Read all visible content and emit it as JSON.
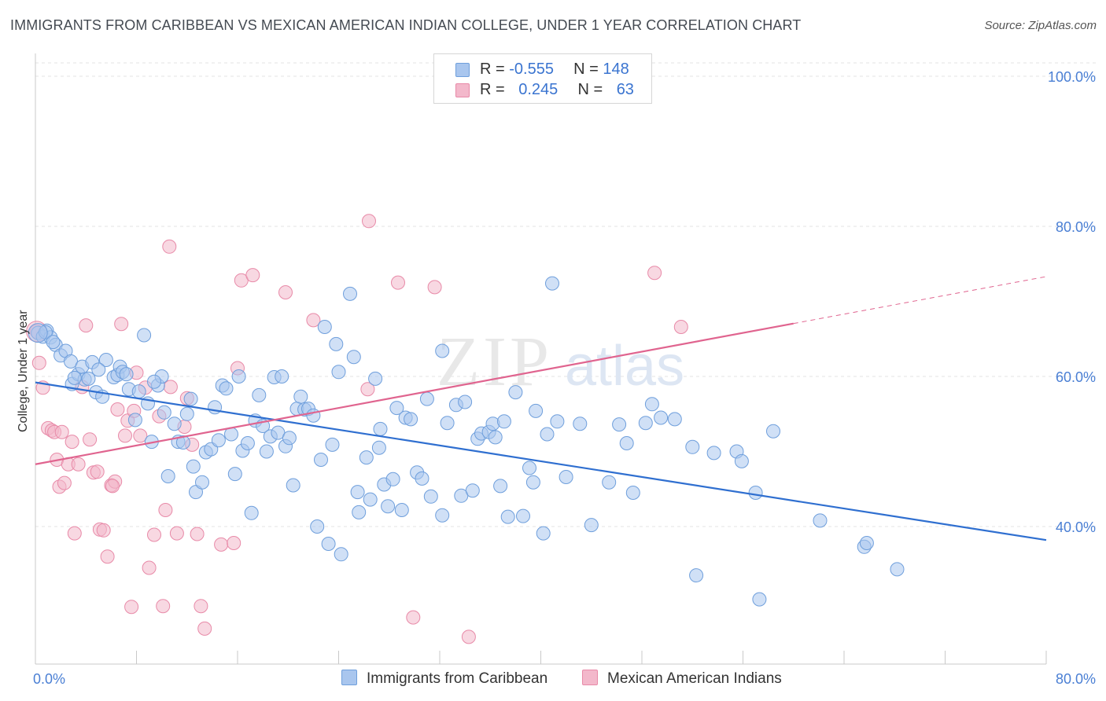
{
  "header": {
    "title": "IMMIGRANTS FROM CARIBBEAN VS MEXICAN AMERICAN INDIAN COLLEGE, UNDER 1 YEAR CORRELATION CHART",
    "source": "Source: ZipAtlas.com"
  },
  "legend": {
    "series1": {
      "r_label": "R =",
      "r_value": "-0.555",
      "n_label": "N =",
      "n_value": "148"
    },
    "series2": {
      "r_label": "R =",
      "r_value": "0.245",
      "n_label": "N =",
      "n_value": "63"
    }
  },
  "watermark": {
    "zip": "ZIP",
    "atlas": "atlas"
  },
  "colors": {
    "blue_fill": "#a9c6ee",
    "blue_stroke": "#6f9fdc",
    "blue_line": "#2f6fd0",
    "pink_fill": "#f3b8cb",
    "pink_stroke": "#e88aa8",
    "pink_line": "#e0648f",
    "axis_text": "#4a7fd4",
    "grid": "#e3e3e3"
  },
  "chart_data": {
    "type": "scatter",
    "title": "IMMIGRANTS FROM CARIBBEAN VS MEXICAN AMERICAN INDIAN COLLEGE, UNDER 1 YEAR CORRELATION CHART",
    "xlabel": "",
    "ylabel": "College, Under 1 year",
    "xlim": [
      0,
      80
    ],
    "ylim": [
      22,
      102
    ],
    "x_tick_labels": [
      "0.0%",
      "80.0%"
    ],
    "y_tick_labels": [
      "100.0%",
      "80.0%",
      "60.0%",
      "40.0%"
    ],
    "y_ticks": [
      100,
      80,
      60,
      40
    ],
    "grid": true,
    "legend_position": "top-center",
    "series": [
      {
        "name": "Immigrants from Caribbean",
        "color": "#a9c6ee",
        "trend": {
          "x": [
            0,
            80
          ],
          "y": [
            59.2,
            38.2
          ],
          "dashed_from": null
        },
        "points": [
          [
            0.2,
            65.8
          ],
          [
            0.6,
            65.3
          ],
          [
            0.9,
            66.1
          ],
          [
            1.2,
            65.2
          ],
          [
            1.6,
            64.2
          ],
          [
            2.0,
            62.8
          ],
          [
            2.4,
            63.4
          ],
          [
            2.8,
            62.0
          ],
          [
            2.9,
            59.0
          ],
          [
            3.4,
            60.3
          ],
          [
            3.7,
            61.3
          ],
          [
            3.9,
            59.6
          ],
          [
            4.2,
            59.7
          ],
          [
            4.5,
            61.9
          ],
          [
            4.8,
            57.9
          ],
          [
            5.3,
            57.3
          ],
          [
            5.6,
            62.2
          ],
          [
            6.2,
            59.9
          ],
          [
            6.5,
            60.2
          ],
          [
            6.7,
            61.3
          ],
          [
            6.9,
            60.6
          ],
          [
            7.2,
            60.3
          ],
          [
            7.4,
            58.3
          ],
          [
            7.9,
            54.2
          ],
          [
            8.2,
            58.0
          ],
          [
            8.6,
            65.5
          ],
          [
            8.9,
            56.4
          ],
          [
            9.2,
            51.3
          ],
          [
            9.7,
            58.8
          ],
          [
            10.0,
            60.0
          ],
          [
            10.2,
            55.2
          ],
          [
            10.5,
            46.7
          ],
          [
            11.0,
            53.7
          ],
          [
            11.3,
            51.3
          ],
          [
            11.7,
            51.2
          ],
          [
            12.0,
            55.0
          ],
          [
            12.3,
            57.0
          ],
          [
            12.5,
            48.0
          ],
          [
            12.7,
            44.6
          ],
          [
            13.2,
            45.9
          ],
          [
            13.5,
            49.9
          ],
          [
            13.9,
            50.3
          ],
          [
            14.2,
            55.9
          ],
          [
            14.5,
            51.5
          ],
          [
            14.8,
            58.8
          ],
          [
            15.1,
            58.4
          ],
          [
            15.5,
            52.3
          ],
          [
            15.8,
            47.0
          ],
          [
            16.1,
            60.0
          ],
          [
            16.4,
            50.1
          ],
          [
            16.8,
            51.1
          ],
          [
            17.1,
            41.8
          ],
          [
            17.4,
            54.1
          ],
          [
            17.7,
            57.5
          ],
          [
            18.0,
            53.4
          ],
          [
            18.3,
            50.0
          ],
          [
            18.6,
            52.0
          ],
          [
            18.9,
            59.9
          ],
          [
            19.2,
            52.5
          ],
          [
            19.5,
            60.0
          ],
          [
            19.8,
            50.7
          ],
          [
            20.1,
            51.8
          ],
          [
            20.4,
            45.5
          ],
          [
            20.7,
            55.7
          ],
          [
            21.0,
            57.3
          ],
          [
            21.3,
            55.6
          ],
          [
            21.6,
            55.7
          ],
          [
            22.0,
            54.8
          ],
          [
            22.3,
            40.0
          ],
          [
            22.6,
            48.9
          ],
          [
            22.9,
            66.6
          ],
          [
            23.2,
            37.7
          ],
          [
            23.5,
            50.9
          ],
          [
            23.8,
            64.3
          ],
          [
            24.0,
            60.6
          ],
          [
            24.2,
            36.3
          ],
          [
            24.9,
            71.0
          ],
          [
            25.2,
            62.6
          ],
          [
            25.5,
            44.6
          ],
          [
            25.6,
            41.9
          ],
          [
            26.2,
            49.2
          ],
          [
            26.5,
            43.6
          ],
          [
            26.9,
            59.7
          ],
          [
            27.2,
            50.5
          ],
          [
            27.3,
            53.0
          ],
          [
            27.6,
            45.6
          ],
          [
            27.9,
            42.7
          ],
          [
            28.3,
            46.3
          ],
          [
            28.6,
            55.8
          ],
          [
            29.0,
            42.2
          ],
          [
            29.3,
            54.5
          ],
          [
            29.7,
            54.3
          ],
          [
            30.2,
            47.2
          ],
          [
            30.6,
            46.4
          ],
          [
            31.0,
            57.0
          ],
          [
            31.3,
            44.0
          ],
          [
            32.2,
            63.4
          ],
          [
            32.2,
            41.5
          ],
          [
            32.6,
            53.8
          ],
          [
            33.3,
            56.2
          ],
          [
            33.7,
            44.1
          ],
          [
            34.0,
            56.6
          ],
          [
            34.6,
            44.8
          ],
          [
            35.0,
            51.7
          ],
          [
            35.3,
            52.4
          ],
          [
            35.9,
            52.6
          ],
          [
            36.2,
            53.7
          ],
          [
            36.4,
            51.9
          ],
          [
            36.8,
            45.4
          ],
          [
            37.1,
            54.0
          ],
          [
            37.4,
            41.3
          ],
          [
            38.0,
            57.9
          ],
          [
            38.6,
            41.4
          ],
          [
            39.1,
            47.8
          ],
          [
            39.4,
            45.9
          ],
          [
            39.6,
            55.4
          ],
          [
            40.2,
            39.1
          ],
          [
            40.5,
            52.3
          ],
          [
            40.9,
            72.4
          ],
          [
            41.3,
            54.0
          ],
          [
            42.0,
            46.6
          ],
          [
            43.1,
            53.7
          ],
          [
            44.0,
            40.2
          ],
          [
            45.4,
            45.9
          ],
          [
            46.2,
            53.6
          ],
          [
            46.8,
            51.1
          ],
          [
            47.3,
            44.5
          ],
          [
            48.3,
            53.8
          ],
          [
            48.8,
            56.3
          ],
          [
            49.5,
            54.5
          ],
          [
            50.6,
            54.3
          ],
          [
            52.0,
            50.6
          ],
          [
            52.3,
            33.5
          ],
          [
            53.7,
            49.8
          ],
          [
            55.5,
            50.0
          ],
          [
            55.9,
            48.7
          ],
          [
            57.0,
            44.5
          ],
          [
            57.3,
            30.3
          ],
          [
            58.4,
            52.7
          ],
          [
            62.1,
            40.8
          ],
          [
            65.6,
            37.3
          ],
          [
            65.8,
            37.8
          ],
          [
            68.2,
            34.3
          ],
          [
            0.8,
            65.9
          ],
          [
            1.4,
            64.6
          ],
          [
            3.1,
            59.8
          ],
          [
            5.0,
            60.9
          ],
          [
            9.4,
            59.3
          ]
        ]
      },
      {
        "name": "Mexican American Indians",
        "color": "#f3b8cb",
        "trend": {
          "x": [
            0,
            80
          ],
          "y": [
            48.3,
            73.3
          ],
          "dashed_from": 60
        },
        "points": [
          [
            0.1,
            66.0
          ],
          [
            0.3,
            61.8
          ],
          [
            0.6,
            58.5
          ],
          [
            1.0,
            53.1
          ],
          [
            1.3,
            52.8
          ],
          [
            1.5,
            52.6
          ],
          [
            1.7,
            48.9
          ],
          [
            1.9,
            45.3
          ],
          [
            2.3,
            45.8
          ],
          [
            2.6,
            48.3
          ],
          [
            2.9,
            51.3
          ],
          [
            3.1,
            39.1
          ],
          [
            3.4,
            48.3
          ],
          [
            3.7,
            58.6
          ],
          [
            4.0,
            66.8
          ],
          [
            4.3,
            51.6
          ],
          [
            4.6,
            47.2
          ],
          [
            4.9,
            47.3
          ],
          [
            5.1,
            39.6
          ],
          [
            5.4,
            39.5
          ],
          [
            5.7,
            36.0
          ],
          [
            6.0,
            45.5
          ],
          [
            6.3,
            46.0
          ],
          [
            6.5,
            55.6
          ],
          [
            6.8,
            67.0
          ],
          [
            7.1,
            52.1
          ],
          [
            7.3,
            54.1
          ],
          [
            7.6,
            29.3
          ],
          [
            7.8,
            55.4
          ],
          [
            8.0,
            60.5
          ],
          [
            8.3,
            52.1
          ],
          [
            8.7,
            58.5
          ],
          [
            9.0,
            34.5
          ],
          [
            9.4,
            38.9
          ],
          [
            9.8,
            54.7
          ],
          [
            10.1,
            29.4
          ],
          [
            10.3,
            42.2
          ],
          [
            10.6,
            77.3
          ],
          [
            11.2,
            39.1
          ],
          [
            11.8,
            53.3
          ],
          [
            12.0,
            57.1
          ],
          [
            12.4,
            50.9
          ],
          [
            12.8,
            39.0
          ],
          [
            13.1,
            29.4
          ],
          [
            13.4,
            26.4
          ],
          [
            14.7,
            37.6
          ],
          [
            15.7,
            37.8
          ],
          [
            16.0,
            61.1
          ],
          [
            16.3,
            72.8
          ],
          [
            17.2,
            73.5
          ],
          [
            19.8,
            71.2
          ],
          [
            22.0,
            67.5
          ],
          [
            26.3,
            58.3
          ],
          [
            26.4,
            80.7
          ],
          [
            28.7,
            72.5
          ],
          [
            29.9,
            27.9
          ],
          [
            31.6,
            71.9
          ],
          [
            34.3,
            25.3
          ],
          [
            49.0,
            73.8
          ],
          [
            51.1,
            66.6
          ],
          [
            2.1,
            52.6
          ],
          [
            6.1,
            45.4
          ],
          [
            10.7,
            58.6
          ]
        ]
      }
    ]
  }
}
